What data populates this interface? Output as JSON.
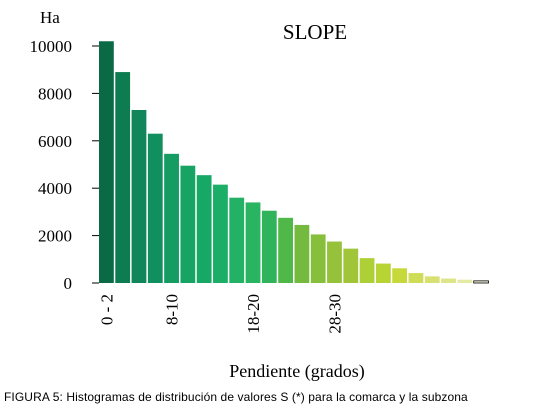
{
  "chart_data": {
    "type": "bar",
    "title": "SLOPE",
    "ylabel": "Ha",
    "xlabel": "Pendiente (grados)",
    "ylim": [
      0,
      10000
    ],
    "yticks": [
      0,
      2000,
      4000,
      6000,
      8000,
      10000
    ],
    "x_tick_labels": [
      "0 - 2",
      "8-10",
      "18-20",
      "28-30"
    ],
    "x_tick_label_bar_index": [
      0,
      4,
      9,
      14
    ],
    "grid": false,
    "legend": "none",
    "values": [
      10200,
      8900,
      7300,
      6300,
      5450,
      4950,
      4550,
      4150,
      3600,
      3400,
      3050,
      2750,
      2450,
      2050,
      1750,
      1450,
      1050,
      820,
      620,
      420,
      280,
      190,
      140,
      90
    ],
    "colors": [
      "#0a6a46",
      "#0d7c51",
      "#10865a",
      "#128f5f",
      "#149c62",
      "#16a363",
      "#18a865",
      "#1cae66",
      "#23b165",
      "#29b462",
      "#30b45b",
      "#50b749",
      "#73ba3e",
      "#86bf3c",
      "#95c23a",
      "#a0c538",
      "#add036",
      "#b8d434",
      "#c6d83a",
      "#cfdc58",
      "#d7e070",
      "#dde588",
      "#e3eaa4",
      "#f1f3dc"
    ]
  },
  "caption": "FIGURA 5: Histogramas de distribución de valores S (*) para la comarca y la subzona"
}
